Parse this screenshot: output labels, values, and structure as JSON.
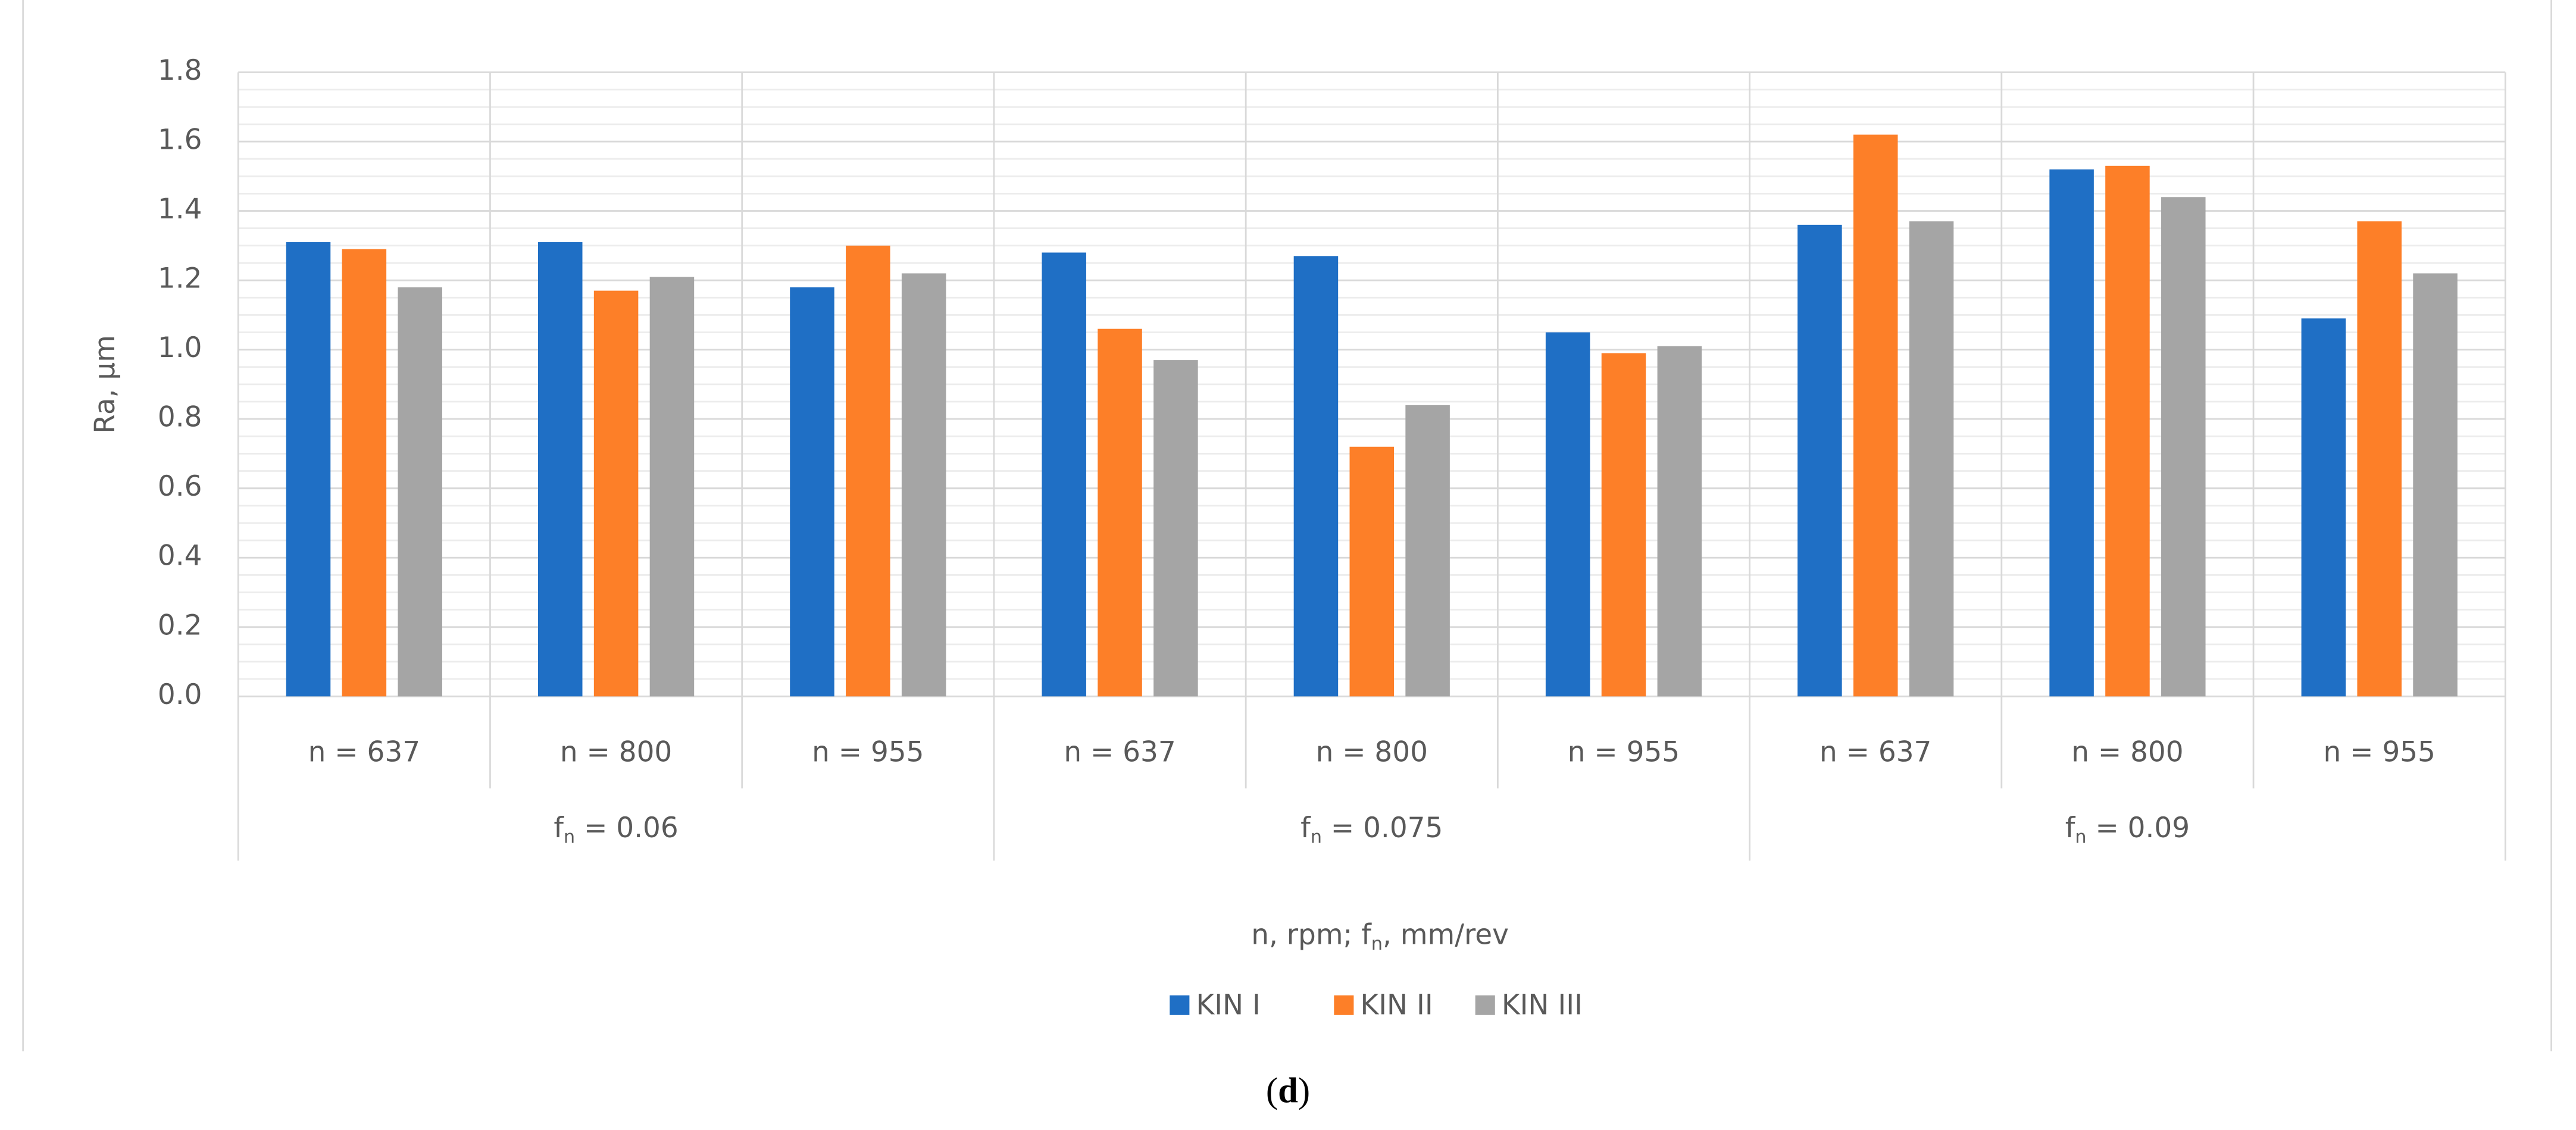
{
  "chart_data": {
    "type": "bar",
    "y_label": "Ra, µm",
    "x_label": [
      "n, rpm; f",
      "n",
      ", mm/rev"
    ],
    "caption": [
      "(",
      "d",
      ")"
    ],
    "categories": [
      "n = 637",
      "n = 800",
      "n = 955",
      "n = 637",
      "n = 800",
      "n = 955",
      "n = 637",
      "n = 800",
      "n = 955"
    ],
    "groups": [
      [
        "f",
        "n",
        " = 0.06"
      ],
      [
        "f",
        "n",
        " = 0.075"
      ],
      [
        "f",
        "n",
        " = 0.09"
      ]
    ],
    "series": [
      {
        "name": "KIN I",
        "color": "#1f6fc5",
        "values": [
          1.31,
          1.31,
          1.18,
          1.28,
          1.27,
          1.05,
          1.36,
          1.52,
          1.09
        ]
      },
      {
        "name": "KIN II",
        "color": "#fd7f28",
        "values": [
          1.29,
          1.17,
          1.3,
          1.06,
          0.72,
          0.99,
          1.62,
          1.53,
          1.37
        ]
      },
      {
        "name": "KIN III",
        "color": "#a5a5a5",
        "values": [
          1.18,
          1.21,
          1.22,
          0.97,
          0.84,
          1.01,
          1.37,
          1.44,
          1.22
        ]
      }
    ],
    "ylim": [
      0,
      1.8
    ],
    "yticks": [
      {
        "value": 0,
        "label": "0.0"
      },
      0.2,
      0.4,
      0.6,
      0.8,
      {
        "value": 1,
        "label": "1.0"
      },
      1.2,
      1.4,
      1.6,
      1.8
    ],
    "grid": true
  }
}
